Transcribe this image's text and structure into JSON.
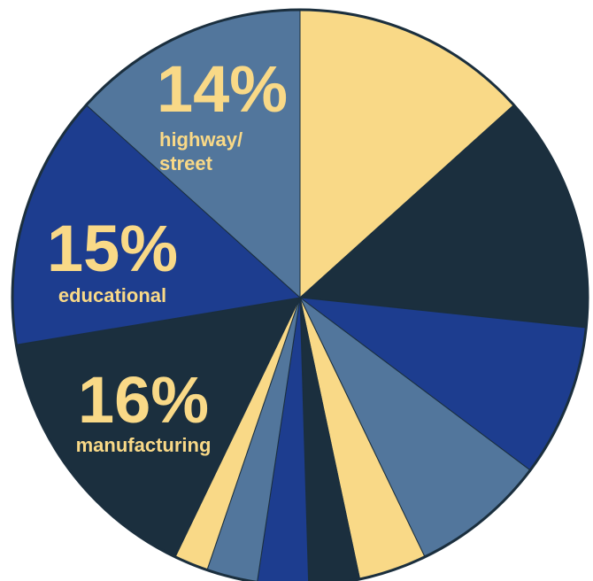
{
  "chart_data": {
    "type": "pie",
    "start_angle_deg": 0,
    "direction": "clockwise",
    "slices": [
      {
        "value": 14,
        "color": "#f9d987"
      },
      {
        "value": 14,
        "color": "#1b2f3e"
      },
      {
        "value": 9,
        "color": "#1d3d8f"
      },
      {
        "value": 8,
        "color": "#52769c"
      },
      {
        "value": 4,
        "color": "#f9d987"
      },
      {
        "value": 3,
        "color": "#1b2f3e"
      },
      {
        "value": 3,
        "color": "#1d3d8f"
      },
      {
        "value": 3,
        "color": "#52769c"
      },
      {
        "value": 2,
        "color": "#f9d987"
      },
      {
        "value": 16,
        "color": "#1b2f3e",
        "percent_label": "16%",
        "category": "manufacturing",
        "label_color": "#f9d987"
      },
      {
        "value": 15,
        "color": "#1d3d8f",
        "percent_label": "15%",
        "category": "educational",
        "label_color": "#f9d987"
      },
      {
        "value": 14,
        "color": "#52769c",
        "percent_label": "14%",
        "category": "highway/\nstreet",
        "label_color": "#f9d987"
      }
    ]
  }
}
